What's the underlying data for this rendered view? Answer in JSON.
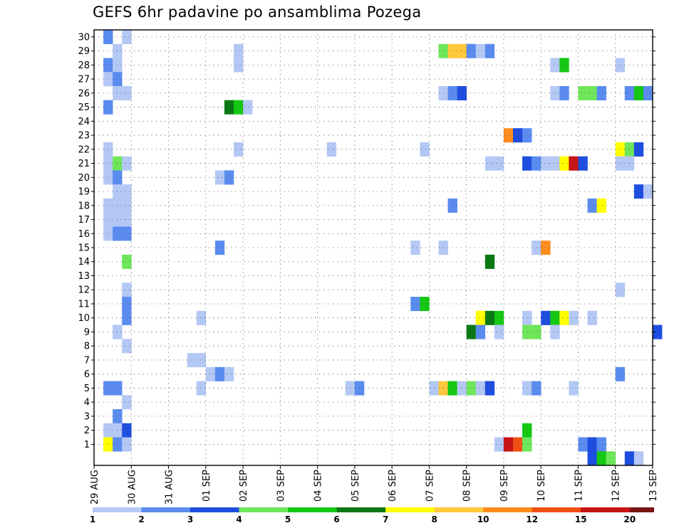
{
  "title": "GEFS 6hr padavine po ansamblima Pozega",
  "chart_data": {
    "type": "heatmap",
    "title": "GEFS 6hr padavine po ansamblima Pozega",
    "x_unit": "6hr steps",
    "x_ticks": [
      "29 AUG",
      "30 AUG",
      "31 AUG",
      "01 SEP",
      "02 SEP",
      "03 SEP",
      "04 SEP",
      "05 SEP",
      "06 SEP",
      "07 SEP",
      "08 SEP",
      "09 SEP",
      "10 SEP",
      "11 SEP",
      "12 SEP",
      "13 SEP"
    ],
    "y_ticks": [
      1,
      2,
      3,
      4,
      5,
      6,
      7,
      8,
      9,
      10,
      11,
      12,
      13,
      14,
      15,
      16,
      17,
      18,
      19,
      20,
      21,
      22,
      23,
      24,
      25,
      26,
      27,
      28,
      29,
      30
    ],
    "grid": true,
    "colorbar": {
      "labels": [
        "1",
        "2",
        "3",
        "4",
        "5",
        "6",
        "7",
        "8",
        "10",
        "12",
        "15",
        "20"
      ],
      "colors": [
        "#b4c8f5",
        "#5a8cf0",
        "#1e4ee0",
        "#6ee65a",
        "#14c814",
        "#0a7814",
        "#ffff00",
        "#ffc83c",
        "#ff8c1e",
        "#f05014",
        "#c81414",
        "#781414"
      ]
    },
    "cells": [
      [
        1,
        30,
        2
      ],
      [
        3,
        30,
        1
      ],
      [
        2,
        29,
        1
      ],
      [
        37,
        29,
        4
      ],
      [
        38,
        29,
        8
      ],
      [
        39,
        29,
        8
      ],
      [
        40,
        29,
        2
      ],
      [
        41,
        29,
        1
      ],
      [
        42,
        29,
        2
      ],
      [
        15,
        29,
        1
      ],
      [
        1,
        28,
        2
      ],
      [
        2,
        28,
        1
      ],
      [
        15,
        28,
        1
      ],
      [
        49,
        28,
        1
      ],
      [
        50,
        28,
        5
      ],
      [
        56,
        28,
        1
      ],
      [
        1,
        27,
        1
      ],
      [
        2,
        27,
        2
      ],
      [
        2,
        26,
        1
      ],
      [
        3,
        26,
        1
      ],
      [
        37,
        26,
        1
      ],
      [
        38,
        26,
        2
      ],
      [
        39,
        26,
        3
      ],
      [
        49,
        26,
        1
      ],
      [
        50,
        26,
        2
      ],
      [
        52,
        26,
        4
      ],
      [
        53,
        26,
        4
      ],
      [
        54,
        26,
        2
      ],
      [
        57,
        26,
        2
      ],
      [
        58,
        26,
        5
      ],
      [
        59,
        26,
        2
      ],
      [
        1,
        25,
        2
      ],
      [
        14,
        25,
        6
      ],
      [
        15,
        25,
        5
      ],
      [
        16,
        25,
        1
      ],
      [
        44,
        23,
        9
      ],
      [
        45,
        23,
        3
      ],
      [
        46,
        23,
        2
      ],
      [
        1,
        22,
        1
      ],
      [
        15,
        22,
        1
      ],
      [
        25,
        22,
        1
      ],
      [
        35,
        22,
        1
      ],
      [
        56,
        22,
        7
      ],
      [
        57,
        22,
        4
      ],
      [
        58,
        22,
        3
      ],
      [
        1,
        21,
        1
      ],
      [
        2,
        21,
        4
      ],
      [
        3,
        21,
        1
      ],
      [
        42,
        21,
        1
      ],
      [
        43,
        21,
        1
      ],
      [
        46,
        21,
        3
      ],
      [
        47,
        21,
        2
      ],
      [
        48,
        21,
        1
      ],
      [
        49,
        21,
        1
      ],
      [
        50,
        21,
        7
      ],
      [
        51,
        21,
        11
      ],
      [
        52,
        21,
        3
      ],
      [
        56,
        21,
        1
      ],
      [
        57,
        21,
        1
      ],
      [
        1,
        20,
        1
      ],
      [
        2,
        20,
        2
      ],
      [
        13,
        20,
        1
      ],
      [
        14,
        20,
        2
      ],
      [
        2,
        19,
        1
      ],
      [
        3,
        19,
        1
      ],
      [
        58,
        19,
        3
      ],
      [
        59,
        19,
        1
      ],
      [
        1,
        18,
        1
      ],
      [
        2,
        18,
        1
      ],
      [
        3,
        18,
        1
      ],
      [
        38,
        18,
        2
      ],
      [
        53,
        18,
        2
      ],
      [
        54,
        18,
        7
      ],
      [
        1,
        17,
        1
      ],
      [
        2,
        17,
        1
      ],
      [
        3,
        17,
        1
      ],
      [
        1,
        16,
        1
      ],
      [
        2,
        16,
        2
      ],
      [
        3,
        16,
        2
      ],
      [
        13,
        15,
        2
      ],
      [
        34,
        15,
        1
      ],
      [
        37,
        15,
        1
      ],
      [
        47,
        15,
        1
      ],
      [
        48,
        15,
        9
      ],
      [
        3,
        14,
        4
      ],
      [
        42,
        14,
        6
      ],
      [
        3,
        12,
        1
      ],
      [
        56,
        12,
        1
      ],
      [
        3,
        11,
        2
      ],
      [
        34,
        11,
        2
      ],
      [
        35,
        11,
        5
      ],
      [
        3,
        10,
        2
      ],
      [
        11,
        10,
        1
      ],
      [
        41,
        10,
        7
      ],
      [
        42,
        10,
        6
      ],
      [
        43,
        10,
        5
      ],
      [
        46,
        10,
        1
      ],
      [
        48,
        10,
        3
      ],
      [
        49,
        10,
        5
      ],
      [
        50,
        10,
        7
      ],
      [
        51,
        10,
        1
      ],
      [
        53,
        10,
        1
      ],
      [
        2,
        9,
        1
      ],
      [
        40,
        9,
        6
      ],
      [
        41,
        9,
        2
      ],
      [
        43,
        9,
        1
      ],
      [
        46,
        9,
        4
      ],
      [
        47,
        9,
        4
      ],
      [
        49,
        9,
        1
      ],
      [
        60,
        9,
        3
      ],
      [
        3,
        8,
        1
      ],
      [
        10,
        7,
        1
      ],
      [
        11,
        7,
        1
      ],
      [
        12,
        6,
        1
      ],
      [
        13,
        6,
        2
      ],
      [
        14,
        6,
        1
      ],
      [
        56,
        6,
        2
      ],
      [
        1,
        5,
        2
      ],
      [
        2,
        5,
        2
      ],
      [
        11,
        5,
        1
      ],
      [
        27,
        5,
        1
      ],
      [
        28,
        5,
        2
      ],
      [
        36,
        5,
        1
      ],
      [
        37,
        5,
        8
      ],
      [
        38,
        5,
        5
      ],
      [
        39,
        5,
        1
      ],
      [
        40,
        5,
        4
      ],
      [
        41,
        5,
        1
      ],
      [
        42,
        5,
        3
      ],
      [
        46,
        5,
        1
      ],
      [
        47,
        5,
        2
      ],
      [
        51,
        5,
        1
      ],
      [
        3,
        4,
        1
      ],
      [
        2,
        3,
        2
      ],
      [
        1,
        2,
        1
      ],
      [
        2,
        2,
        1
      ],
      [
        3,
        2,
        3
      ],
      [
        46,
        2,
        5
      ],
      [
        1,
        1,
        7
      ],
      [
        2,
        1,
        2
      ],
      [
        3,
        1,
        1
      ],
      [
        43,
        1,
        1
      ],
      [
        44,
        1,
        11
      ],
      [
        45,
        1,
        10
      ],
      [
        46,
        1,
        4
      ],
      [
        52,
        1,
        2
      ],
      [
        53,
        1,
        3
      ],
      [
        54,
        1,
        2
      ],
      [
        53,
        0,
        3
      ],
      [
        54,
        0,
        5
      ],
      [
        55,
        0,
        4
      ],
      [
        57,
        0,
        3
      ],
      [
        58,
        0,
        1
      ]
    ]
  }
}
